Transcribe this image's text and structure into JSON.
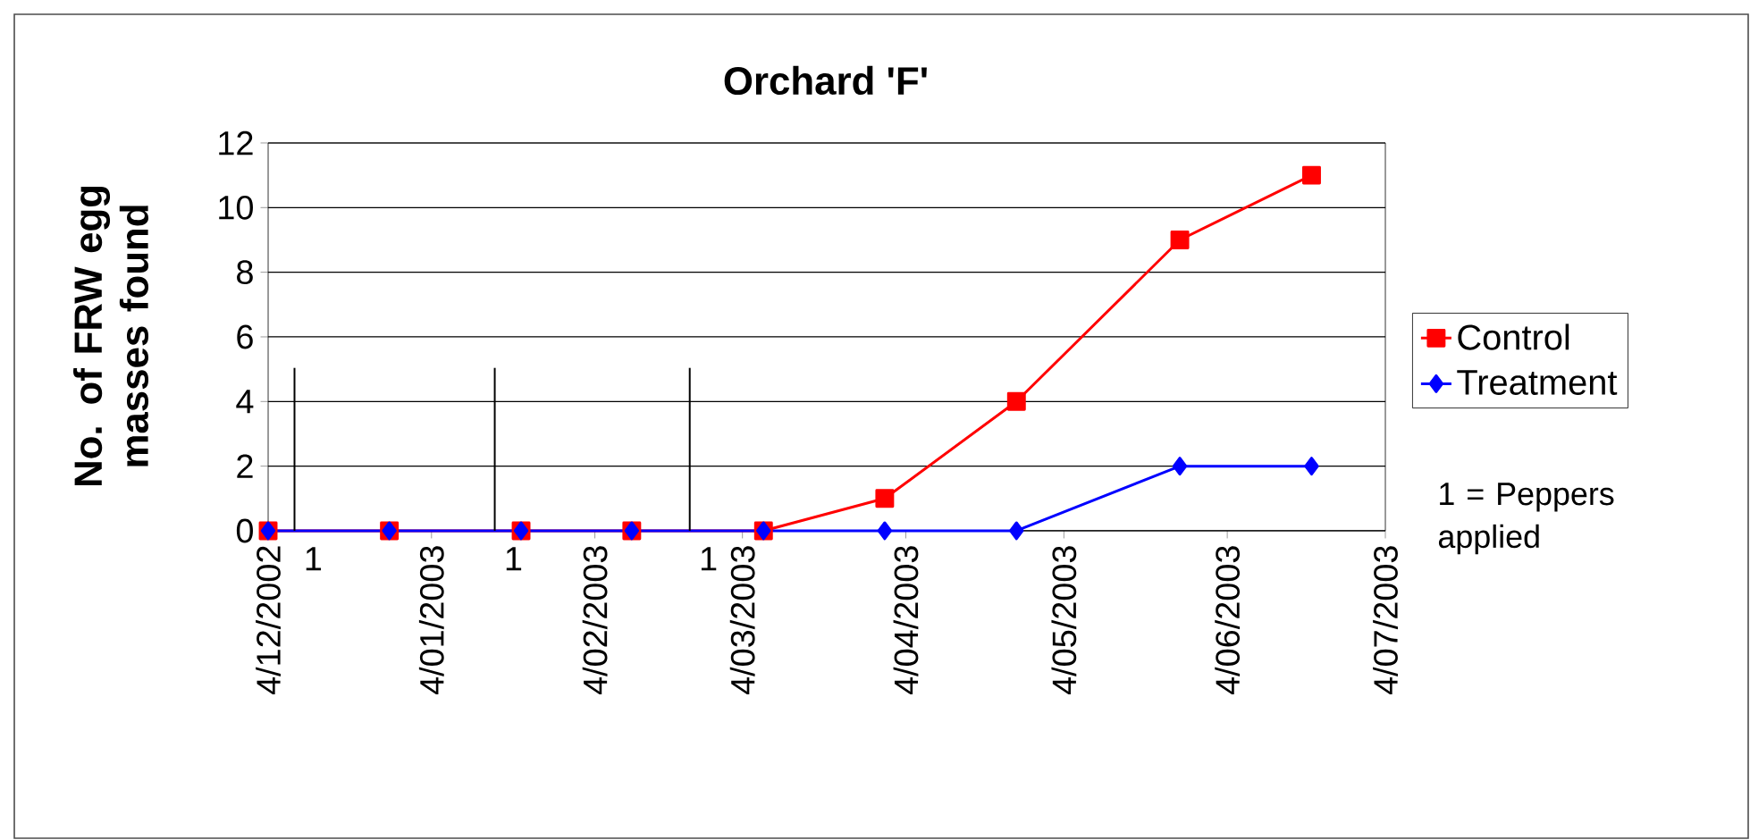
{
  "chart_data": {
    "type": "line",
    "title": "Orchard 'F'",
    "ylabel": "No. of FRW egg masses found",
    "x": [
      "2002-12-04",
      "2002-12-27",
      "2003-01-21",
      "2003-02-11",
      "2003-03-08",
      "2003-03-31",
      "2003-04-25",
      "2003-05-26",
      "2003-06-20"
    ],
    "series": [
      {
        "name": "Control",
        "color": "#ff0000",
        "marker": "square",
        "values": [
          0,
          0,
          0,
          0,
          0,
          1,
          4,
          9,
          11
        ]
      },
      {
        "name": "Treatment",
        "color": "#0000ff",
        "marker": "diamond",
        "values": [
          0,
          0,
          0,
          0,
          0,
          0,
          0,
          2,
          2
        ]
      }
    ],
    "xlim": [
      "2002-12-04",
      "2003-07-04"
    ],
    "xticks": [
      {
        "value": "2002-12-04",
        "label": "4/12/2002"
      },
      {
        "value": "2003-01-04",
        "label": "4/01/2003"
      },
      {
        "value": "2003-02-04",
        "label": "4/02/2003"
      },
      {
        "value": "2003-03-04",
        "label": "4/03/2003"
      },
      {
        "value": "2003-04-04",
        "label": "4/04/2003"
      },
      {
        "value": "2003-05-04",
        "label": "4/05/2003"
      },
      {
        "value": "2003-06-04",
        "label": "4/06/2003"
      },
      {
        "value": "2003-07-04",
        "label": "4/07/2003"
      }
    ],
    "ylim": [
      0,
      12
    ],
    "yticks": [
      0,
      2,
      4,
      6,
      8,
      10,
      12
    ],
    "ref_lines": [
      {
        "axis": "x",
        "value": "2002-12-09",
        "label": "1",
        "color": "#000000"
      },
      {
        "axis": "x",
        "value": "2003-01-16",
        "label": "1",
        "color": "#000000"
      },
      {
        "axis": "x",
        "value": "2003-02-22",
        "label": "1",
        "color": "#000000"
      }
    ],
    "annotations": [
      "1 = Peppers applied"
    ],
    "grid": "y",
    "legend": "right",
    "line_style": "solid"
  }
}
